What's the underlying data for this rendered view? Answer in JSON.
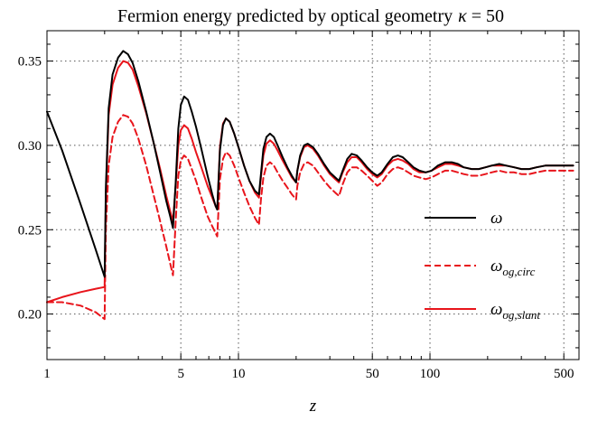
{
  "chart_data": {
    "type": "line",
    "title": "Fermion energy predicted by optical geometry",
    "title_kappa_symbol": "κ",
    "title_kappa_value": "= 50",
    "xlabel": "z",
    "ylabel": "",
    "x_scale": "log",
    "xlim": [
      1,
      600
    ],
    "ylim": [
      0.173,
      0.368
    ],
    "grid": true,
    "legend_position": "right",
    "x_ticks": [
      {
        "value": 1,
        "label": "1"
      },
      {
        "value": 5,
        "label": "5"
      },
      {
        "value": 10,
        "label": "10"
      },
      {
        "value": 50,
        "label": "50"
      },
      {
        "value": 100,
        "label": "100"
      },
      {
        "value": 500,
        "label": "500"
      }
    ],
    "y_ticks": [
      {
        "value": 0.2,
        "label": "0.20"
      },
      {
        "value": 0.25,
        "label": "0.25"
      },
      {
        "value": 0.3,
        "label": "0.30"
      },
      {
        "value": 0.35,
        "label": "0.35"
      }
    ],
    "series": [
      {
        "name": "ω",
        "legend_main": "ω",
        "legend_sub": "",
        "color": "#000000",
        "dash": "solid",
        "x": [
          1.0,
          1.2,
          1.5,
          1.8,
          2.0,
          2.03,
          2.1,
          2.2,
          2.35,
          2.5,
          2.65,
          2.8,
          3.0,
          3.3,
          3.6,
          3.9,
          4.2,
          4.4,
          4.55,
          4.7,
          4.85,
          5.0,
          5.2,
          5.45,
          5.7,
          6.0,
          6.4,
          6.9,
          7.3,
          7.6,
          7.75,
          8.0,
          8.3,
          8.6,
          9.0,
          9.5,
          10.0,
          10.7,
          11.4,
          12.2,
          12.8,
          13.1,
          13.5,
          14.0,
          14.6,
          15.3,
          16.0,
          17.0,
          18.0,
          19.0,
          20.0,
          20.3,
          21.0,
          22.0,
          23.0,
          24.5,
          26.0,
          28.0,
          30.0,
          32.0,
          33.5,
          35.0,
          37.0,
          39.0,
          41.5,
          44.0,
          47.0,
          50.0,
          53.0,
          56.0,
          60.0,
          64.0,
          68.0,
          72.0,
          77.0,
          82.0,
          88.0,
          95.0,
          102.0,
          110.0,
          120.0,
          130.0,
          140.0,
          150.0,
          165.0,
          180.0,
          195.0,
          210.0,
          230.0,
          250.0,
          275.0,
          300.0,
          330.0,
          360.0,
          400.0,
          440.0,
          480.0,
          530.0,
          560.0
        ],
        "y": [
          0.32,
          0.297,
          0.265,
          0.238,
          0.222,
          0.275,
          0.322,
          0.342,
          0.352,
          0.356,
          0.354,
          0.349,
          0.338,
          0.32,
          0.302,
          0.284,
          0.267,
          0.258,
          0.251,
          0.278,
          0.31,
          0.324,
          0.329,
          0.327,
          0.32,
          0.311,
          0.298,
          0.282,
          0.271,
          0.264,
          0.262,
          0.297,
          0.312,
          0.316,
          0.314,
          0.307,
          0.299,
          0.288,
          0.279,
          0.273,
          0.271,
          0.283,
          0.298,
          0.305,
          0.307,
          0.305,
          0.3,
          0.293,
          0.287,
          0.282,
          0.278,
          0.285,
          0.294,
          0.3,
          0.301,
          0.299,
          0.295,
          0.289,
          0.284,
          0.281,
          0.279,
          0.285,
          0.292,
          0.295,
          0.294,
          0.291,
          0.287,
          0.284,
          0.282,
          0.284,
          0.289,
          0.293,
          0.294,
          0.293,
          0.29,
          0.287,
          0.285,
          0.284,
          0.285,
          0.288,
          0.29,
          0.29,
          0.289,
          0.287,
          0.286,
          0.286,
          0.287,
          0.288,
          0.289,
          0.288,
          0.287,
          0.286,
          0.286,
          0.287,
          0.288,
          0.288,
          0.288,
          0.288,
          0.288
        ]
      },
      {
        "name": "ω_og,circ",
        "legend_main": "ω",
        "legend_sub": "og,circ",
        "color": "#e8141b",
        "dash": "dashed",
        "x": [
          1.0,
          1.2,
          1.5,
          1.8,
          2.0,
          2.03,
          2.1,
          2.2,
          2.35,
          2.5,
          2.65,
          2.8,
          3.0,
          3.3,
          3.6,
          3.9,
          4.2,
          4.4,
          4.55,
          4.7,
          4.85,
          5.0,
          5.2,
          5.45,
          5.7,
          6.0,
          6.4,
          6.9,
          7.3,
          7.6,
          7.75,
          8.0,
          8.3,
          8.6,
          9.0,
          9.5,
          10.0,
          10.7,
          11.4,
          12.2,
          12.8,
          13.1,
          13.5,
          14.0,
          14.6,
          15.3,
          16.0,
          17.0,
          18.0,
          19.0,
          20.0,
          20.3,
          21.0,
          22.0,
          23.0,
          24.5,
          26.0,
          28.0,
          30.0,
          32.0,
          33.5,
          35.0,
          37.0,
          39.0,
          41.5,
          44.0,
          47.0,
          50.0,
          53.0,
          56.0,
          60.0,
          64.0,
          68.0,
          72.0,
          77.0,
          82.0,
          88.0,
          95.0,
          102.0,
          110.0,
          120.0,
          130.0,
          140.0,
          150.0,
          165.0,
          180.0,
          195.0,
          210.0,
          230.0,
          250.0,
          275.0,
          300.0,
          330.0,
          360.0,
          400.0,
          440.0,
          480.0,
          530.0,
          560.0
        ],
        "y": [
          0.207,
          0.207,
          0.205,
          0.201,
          0.197,
          0.25,
          0.288,
          0.305,
          0.314,
          0.318,
          0.317,
          0.313,
          0.304,
          0.288,
          0.271,
          0.255,
          0.24,
          0.23,
          0.223,
          0.255,
          0.282,
          0.291,
          0.294,
          0.292,
          0.286,
          0.279,
          0.269,
          0.258,
          0.252,
          0.248,
          0.246,
          0.28,
          0.292,
          0.296,
          0.294,
          0.288,
          0.281,
          0.272,
          0.264,
          0.257,
          0.253,
          0.268,
          0.281,
          0.288,
          0.29,
          0.288,
          0.284,
          0.279,
          0.275,
          0.271,
          0.268,
          0.276,
          0.284,
          0.289,
          0.29,
          0.288,
          0.284,
          0.279,
          0.275,
          0.272,
          0.27,
          0.277,
          0.284,
          0.287,
          0.287,
          0.285,
          0.282,
          0.279,
          0.276,
          0.278,
          0.283,
          0.286,
          0.287,
          0.286,
          0.284,
          0.282,
          0.281,
          0.28,
          0.281,
          0.283,
          0.285,
          0.285,
          0.284,
          0.283,
          0.282,
          0.282,
          0.283,
          0.284,
          0.285,
          0.284,
          0.284,
          0.283,
          0.283,
          0.284,
          0.285,
          0.285,
          0.285,
          0.285,
          0.285
        ]
      },
      {
        "name": "ω_og,slant",
        "legend_main": "ω",
        "legend_sub": "og,slant",
        "color": "#e8141b",
        "dash": "solid",
        "x": [
          1.0,
          1.2,
          1.5,
          1.8,
          2.0,
          2.03,
          2.1,
          2.2,
          2.35,
          2.5,
          2.65,
          2.8,
          3.0,
          3.3,
          3.6,
          3.9,
          4.2,
          4.4,
          4.55,
          4.7,
          4.85,
          5.0,
          5.2,
          5.45,
          5.7,
          6.0,
          6.4,
          6.9,
          7.3,
          7.6,
          7.75,
          8.0,
          8.3,
          8.6,
          9.0,
          9.5,
          10.0,
          10.7,
          11.4,
          12.2,
          12.8,
          13.1,
          13.5,
          14.0,
          14.6,
          15.3,
          16.0,
          17.0,
          18.0,
          19.0,
          20.0,
          20.3,
          21.0,
          22.0,
          23.0,
          24.5,
          26.0,
          28.0,
          30.0,
          32.0,
          33.5,
          35.0,
          37.0,
          39.0,
          41.5,
          44.0,
          47.0,
          50.0,
          53.0,
          56.0,
          60.0,
          64.0,
          68.0,
          72.0,
          77.0,
          82.0,
          88.0,
          95.0,
          102.0,
          110.0,
          120.0,
          130.0,
          140.0,
          150.0,
          165.0,
          180.0,
          195.0,
          210.0,
          230.0,
          250.0,
          275.0,
          300.0,
          330.0,
          360.0,
          400.0,
          440.0,
          480.0,
          530.0,
          560.0
        ],
        "y": [
          0.207,
          0.21,
          0.213,
          0.215,
          0.216,
          0.27,
          0.318,
          0.336,
          0.346,
          0.35,
          0.349,
          0.345,
          0.335,
          0.319,
          0.302,
          0.286,
          0.27,
          0.261,
          0.255,
          0.276,
          0.3,
          0.309,
          0.312,
          0.31,
          0.304,
          0.296,
          0.287,
          0.276,
          0.269,
          0.264,
          0.262,
          0.299,
          0.313,
          0.316,
          0.314,
          0.307,
          0.299,
          0.288,
          0.279,
          0.272,
          0.269,
          0.281,
          0.294,
          0.301,
          0.303,
          0.301,
          0.297,
          0.291,
          0.286,
          0.281,
          0.278,
          0.285,
          0.293,
          0.299,
          0.3,
          0.298,
          0.294,
          0.288,
          0.283,
          0.28,
          0.278,
          0.284,
          0.29,
          0.293,
          0.293,
          0.29,
          0.286,
          0.283,
          0.281,
          0.283,
          0.288,
          0.291,
          0.292,
          0.291,
          0.289,
          0.286,
          0.284,
          0.284,
          0.285,
          0.287,
          0.289,
          0.289,
          0.288,
          0.287,
          0.286,
          0.286,
          0.287,
          0.288,
          0.288,
          0.288,
          0.287,
          0.286,
          0.286,
          0.287,
          0.288,
          0.288,
          0.288,
          0.288,
          0.288
        ]
      }
    ]
  }
}
